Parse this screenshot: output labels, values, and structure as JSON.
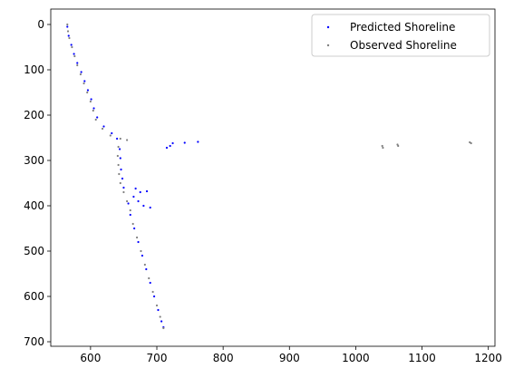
{
  "chart_data": {
    "type": "scatter",
    "xlim": [
      540,
      1210
    ],
    "ylim": [
      -34,
      710
    ],
    "y_inverted": true,
    "xticks": [
      600,
      700,
      800,
      900,
      1000,
      1100,
      1200
    ],
    "yticks": [
      0,
      100,
      200,
      300,
      400,
      500,
      600,
      700
    ],
    "legend": "upper right",
    "series": [
      {
        "name": "Predicted Shoreline",
        "color": "#0000ff",
        "x": [
          565,
          567,
          571,
          575,
          580,
          586,
          591,
          596,
          601,
          605,
          610,
          620,
          632,
          640,
          644,
          645,
          646,
          648,
          650,
          668,
          675,
          665,
          685,
          672,
          690,
          680,
          657,
          660,
          666,
          672,
          678,
          684,
          690,
          696,
          702,
          707,
          710,
          715,
          720,
          724,
          742,
          762
        ],
        "y": [
          5,
          25,
          45,
          65,
          85,
          105,
          125,
          145,
          165,
          185,
          205,
          225,
          240,
          252,
          275,
          295,
          320,
          340,
          360,
          362,
          370,
          380,
          368,
          390,
          404,
          400,
          395,
          420,
          450,
          480,
          510,
          540,
          570,
          600,
          630,
          655,
          668,
          272,
          268,
          262,
          261,
          259
        ]
      },
      {
        "name": "Observed Shoreline",
        "color": "#808080",
        "x": [
          565,
          566,
          568,
          572,
          576,
          580,
          585,
          590,
          595,
          600,
          604,
          608,
          618,
          630,
          645,
          655,
          642,
          641,
          642,
          643,
          645,
          650,
          655,
          660,
          664,
          670,
          676,
          682,
          688,
          694,
          700,
          705,
          710,
          1040,
          1041,
          1063,
          1064,
          1172,
          1174
        ],
        "y": [
          0,
          15,
          30,
          50,
          70,
          90,
          110,
          130,
          150,
          170,
          190,
          210,
          230,
          245,
          252,
          255,
          270,
          290,
          310,
          330,
          350,
          370,
          390,
          410,
          440,
          470,
          500,
          530,
          560,
          590,
          620,
          645,
          670,
          268,
          272,
          265,
          268,
          260,
          262
        ]
      }
    ]
  }
}
